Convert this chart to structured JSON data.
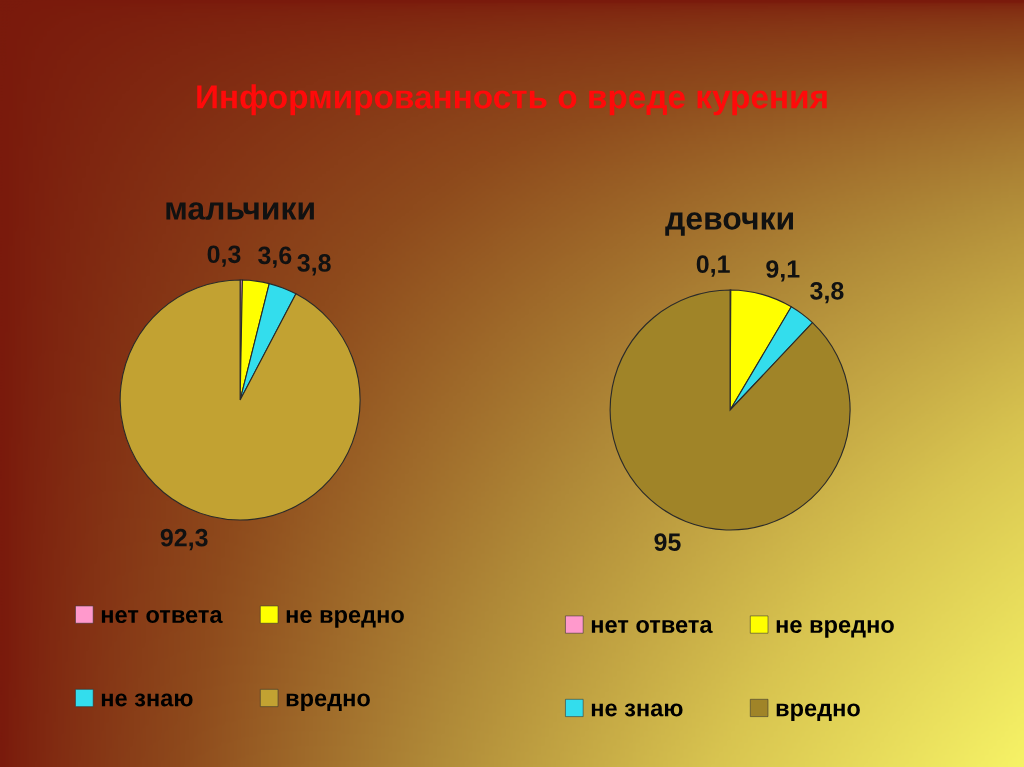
{
  "chart_data": [
    {
      "type": "other",
      "title": "Информированность о вреде курения"
    },
    {
      "type": "pie",
      "title": "мальчики",
      "categories": [
        "нет ответа",
        "не вредно",
        "не знаю",
        "вредно"
      ],
      "values": [
        0.3,
        3.6,
        3.8,
        92.3
      ],
      "colors": [
        "#ff99cc",
        "#ffff00",
        "#33dded",
        "#c2a232"
      ],
      "value_labels": [
        "0,3",
        "3,6",
        "3,8",
        "92,3"
      ],
      "legend": "bottom"
    },
    {
      "type": "pie",
      "title": "девочки",
      "categories": [
        "нет ответа",
        "не вредно",
        "не знаю",
        "вредно"
      ],
      "values": [
        0.1,
        9.1,
        3.8,
        95
      ],
      "colors": [
        "#ff99cc",
        "#ffff00",
        "#33dded",
        "#a08428"
      ],
      "value_labels": [
        "0,1",
        "9,1",
        "3,8",
        "95"
      ],
      "legend": "bottom"
    }
  ]
}
